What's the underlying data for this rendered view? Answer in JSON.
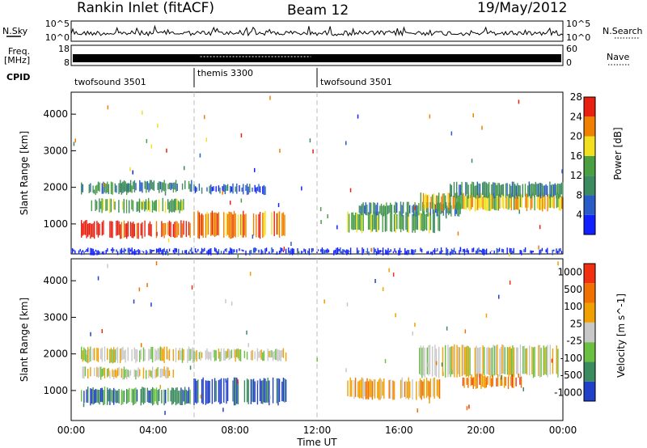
{
  "header": {
    "title": "Rankin Inlet (fitACF)",
    "beam": "Beam 12",
    "date": "19/May/2012"
  },
  "strips": {
    "nsky_label": "N.Sky",
    "nsearch_label": "N.Search",
    "nsky_ticks": [
      "10^5",
      "10^0"
    ],
    "nsearch_ticks": [
      "10^5",
      "10^0"
    ],
    "freq_label_1": "Freq.",
    "freq_label_2": "[MHz]",
    "freq_ticks": [
      "18",
      "8"
    ],
    "nave_label": "Nave",
    "nave_ticks": [
      "60",
      "0"
    ],
    "cpid_label": "CPID"
  },
  "cpid_segments": [
    {
      "label": "twofsound 3501",
      "start_hour": 0,
      "end_hour": 6
    },
    {
      "label": "themis 3300",
      "start_hour": 6,
      "end_hour": 12
    },
    {
      "label": "twofsound 3501",
      "start_hour": 12,
      "end_hour": 24
    }
  ],
  "chart_data": [
    {
      "type": "heatmap",
      "quantity": "Power",
      "ylabel": "Slant Range [km]",
      "colorbar_label": "Power [dB]",
      "colorbar_ticks": [
        "4",
        "8",
        "12",
        "16",
        "20",
        "24",
        "28"
      ],
      "colorbar_colors": [
        "#1020ff",
        "#2a5cc8",
        "#3c8a60",
        "#4aa040",
        "#f0e020",
        "#f08000",
        "#e82010"
      ],
      "y_ticks": [
        "1000",
        "2000",
        "3000",
        "4000"
      ],
      "ylim": [
        180,
        4600
      ],
      "xlim_hours": [
        0,
        24
      ],
      "echo_bands": [
        {
          "t0": 0.5,
          "t1": 5.9,
          "r0": 650,
          "r1": 1050,
          "level": 6
        },
        {
          "t0": 0.5,
          "t1": 3.0,
          "r0": 1850,
          "r1": 2100,
          "level": 2
        },
        {
          "t0": 2.4,
          "t1": 5.9,
          "r0": 1900,
          "r1": 2150,
          "level": 2
        },
        {
          "t0": 1.0,
          "t1": 5.5,
          "r0": 1350,
          "r1": 1650,
          "level": 3
        },
        {
          "t0": 6.0,
          "t1": 10.5,
          "r0": 650,
          "r1": 1300,
          "level": 5
        },
        {
          "t0": 6.0,
          "t1": 9.5,
          "r0": 1850,
          "r1": 2050,
          "level": 1
        },
        {
          "t0": 13.5,
          "t1": 18.0,
          "r0": 800,
          "r1": 1300,
          "level": 3
        },
        {
          "t0": 14.0,
          "t1": 19.0,
          "r0": 1250,
          "r1": 1550,
          "level": 2
        },
        {
          "t0": 17.0,
          "t1": 24.0,
          "r0": 1400,
          "r1": 1800,
          "level": 4
        },
        {
          "t0": 18.5,
          "t1": 24.0,
          "r0": 1750,
          "r1": 2100,
          "level": 2
        },
        {
          "t0": 0.0,
          "t1": 24.0,
          "r0": 200,
          "r1": 300,
          "level": 0
        }
      ]
    },
    {
      "type": "heatmap",
      "quantity": "Velocity",
      "ylabel": "Slant Range [km]",
      "colorbar_label": "Velocity [m s^-1]",
      "colorbar_ticks": [
        "1000",
        "500",
        "100",
        "25",
        "-25",
        "-100",
        "-500",
        "-1000"
      ],
      "colorbar_colors": [
        "#2040c8",
        "#3c8a60",
        "#6ac040",
        "#c8c8c8",
        "#f0a000",
        "#f07000",
        "#f03010"
      ],
      "y_ticks": [
        "1000",
        "2000",
        "3000",
        "4000"
      ],
      "ylim": [
        180,
        4600
      ],
      "xlim_hours": [
        0,
        24
      ],
      "echo_bands": [
        {
          "t0": 0.5,
          "t1": 5.9,
          "r0": 650,
          "r1": 1050,
          "level": 1
        },
        {
          "t0": 0.5,
          "t1": 6.0,
          "r0": 1800,
          "r1": 2150,
          "level": 3
        },
        {
          "t0": 6.0,
          "t1": 10.5,
          "r0": 650,
          "r1": 1300,
          "level": 0
        },
        {
          "t0": 6.0,
          "t1": 10.5,
          "r0": 1850,
          "r1": 2100,
          "level": 3
        },
        {
          "t0": 13.5,
          "t1": 18.0,
          "r0": 800,
          "r1": 1300,
          "level": 4
        },
        {
          "t0": 17.0,
          "t1": 24.0,
          "r0": 1400,
          "r1": 2200,
          "level": 3
        },
        {
          "t0": 19.0,
          "t1": 22.0,
          "r0": 1100,
          "r1": 1400,
          "level": 5
        },
        {
          "t0": 0.5,
          "t1": 5.0,
          "r0": 1350,
          "r1": 1600,
          "level": 3
        }
      ]
    }
  ],
  "x_axis": {
    "ticks": [
      "00:00",
      "04:00",
      "08:00",
      "12:00",
      "16:00",
      "20:00",
      "00:00"
    ],
    "label": "Time UT"
  }
}
